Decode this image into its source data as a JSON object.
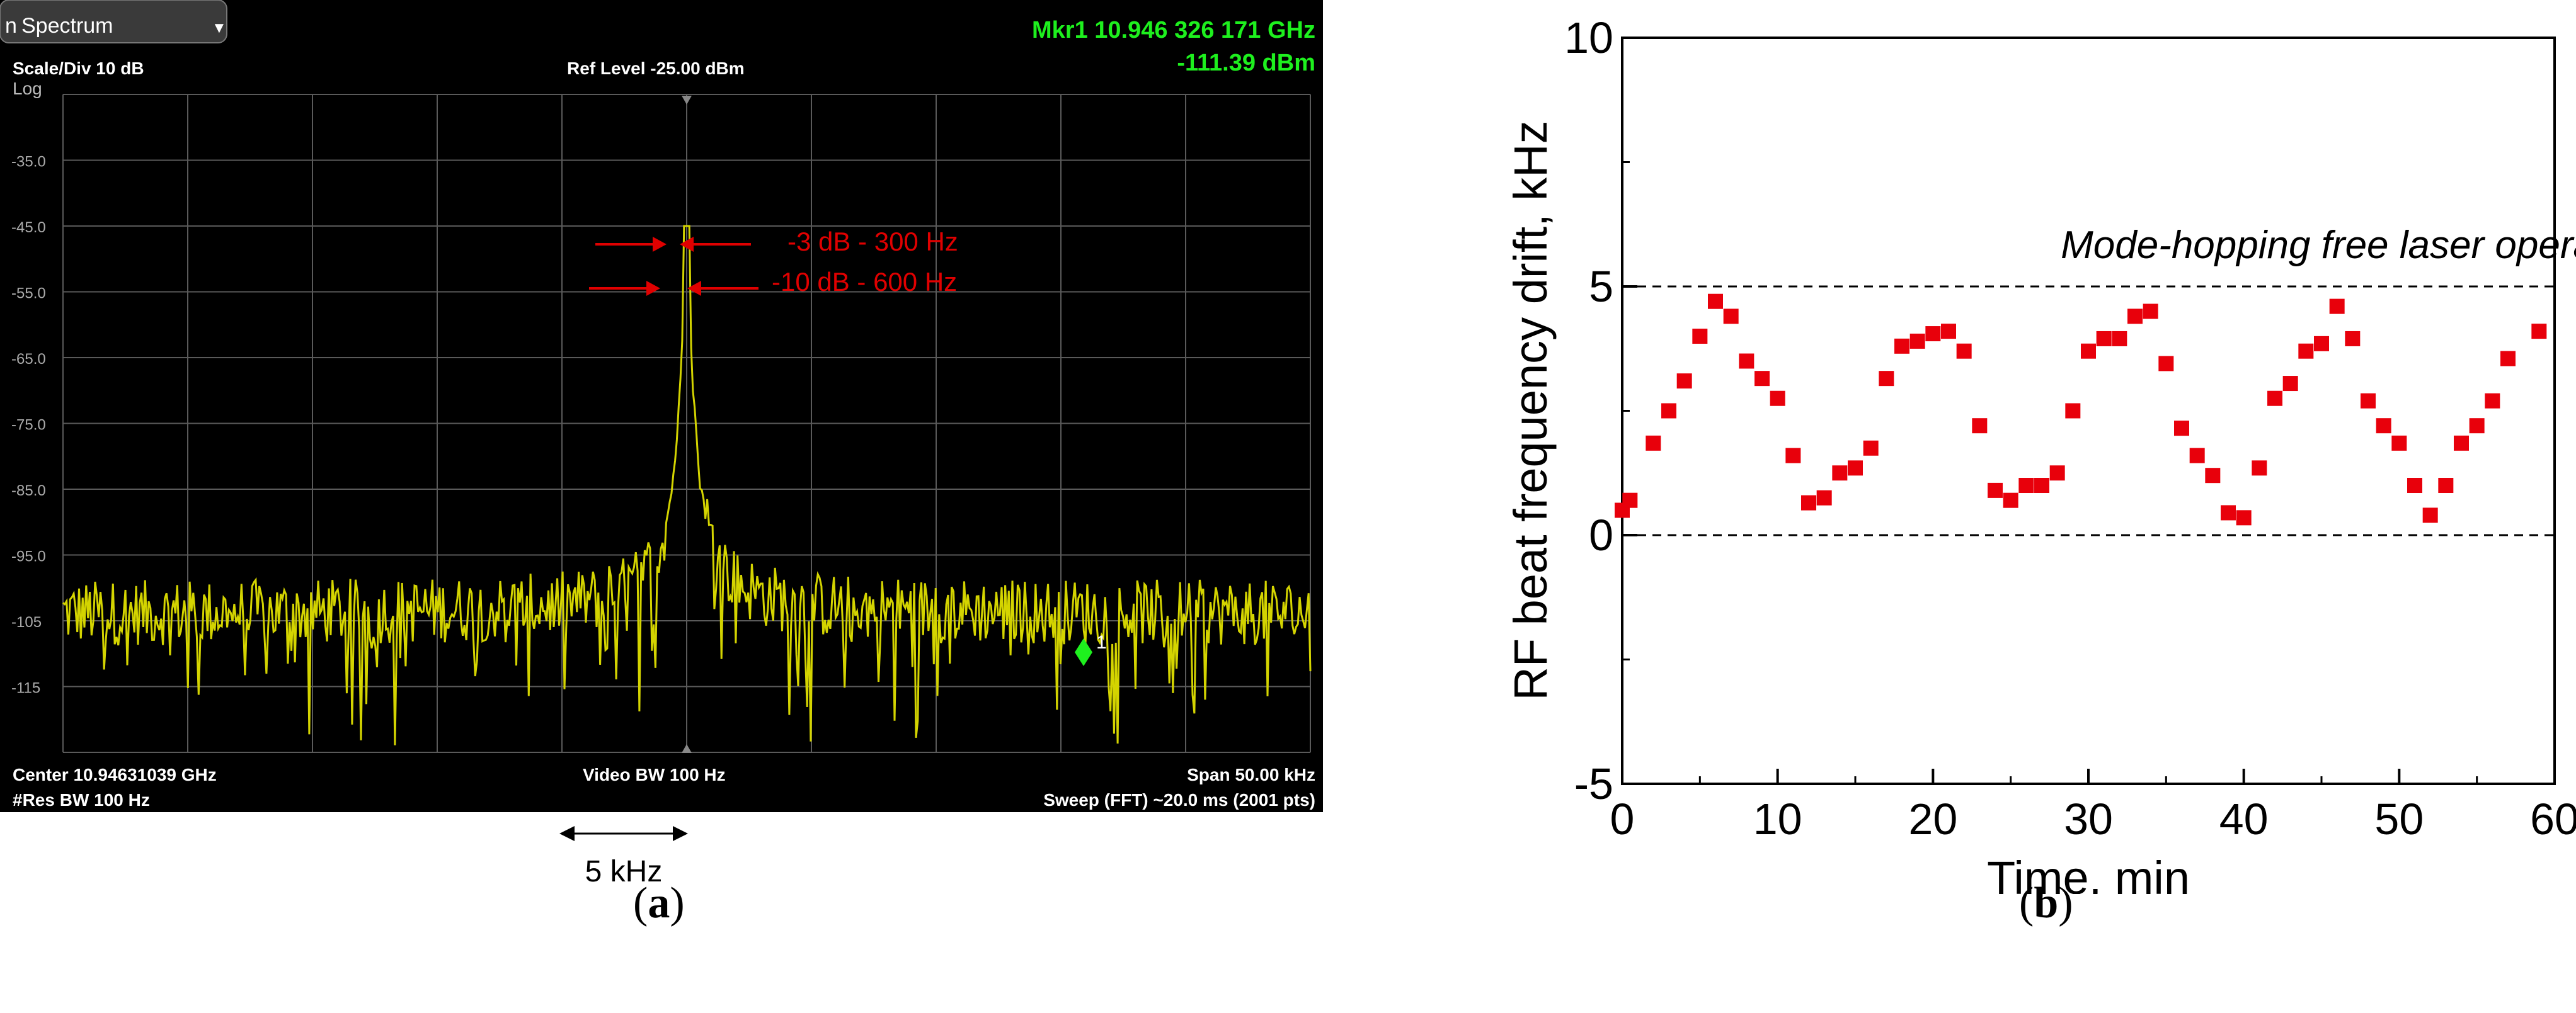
{
  "captions": {
    "a_open": "(",
    "a_letter": "a",
    "a_close": ")",
    "b_open": "(",
    "b_letter": "b",
    "b_close": ")"
  },
  "spectrum": {
    "tab_label": "Spectrum",
    "tab_glyph": "n",
    "scale_div": "Scale/Div 10 dB",
    "scale_mode": "Log",
    "ref_level": "Ref Level -25.00 dBm",
    "marker_line1": "Mkr1  10.946 326 171 GHz",
    "marker_line2": "-111.39 dBm",
    "center": "Center 10.94631039 GHz",
    "res_bw": "#Res BW 100 Hz",
    "video_bw": "Video BW 100 Hz",
    "span": "Span 50.00 kHz",
    "sweep": "Sweep (FFT) ~20.0 ms  (2001 pts)",
    "y_ticks": [
      "-35.0",
      "-45.0",
      "-55.0",
      "-65.0",
      "-75.0",
      "-85.0",
      "-95.0",
      "-105",
      "-115"
    ],
    "annot_3db": "-3 dB - 300 Hz",
    "annot_10db": "-10 dB - 600 Hz",
    "marker_label": "1",
    "scale_bar_label": "5 kHz",
    "colors": {
      "background": "#000000",
      "trace": "#d4d400",
      "grid": "#5a5a5a",
      "annotation": "#e00000",
      "marker": "#00ff00"
    }
  },
  "chart_data": [
    {
      "type": "line",
      "series": [],
      "xlabel": "",
      "ylabel": "",
      "ylim": [
        -125,
        -25
      ],
      "note_unit": "dBm"
    },
    {
      "type": "scatter",
      "title": "",
      "xlabel": "Time, min",
      "ylabel": "RF beat frequency drift, kHz",
      "xlim": [
        0,
        60
      ],
      "ylim": [
        -5,
        10
      ],
      "x_ticks": [
        0,
        10,
        20,
        30,
        40,
        50,
        60
      ],
      "y_ticks": [
        -5,
        0,
        5,
        10
      ],
      "reference_lines": [
        0,
        5
      ],
      "annotation": "Mode-hopping free laser operation",
      "series": [
        {
          "color": "#e8000b",
          "x": [
            0,
            0.5,
            2,
            3,
            4,
            5,
            6,
            7,
            8,
            9,
            10,
            11,
            12,
            13,
            14,
            15,
            16,
            17,
            18,
            19,
            20,
            21,
            22,
            23,
            24,
            25,
            26,
            27,
            28,
            29,
            30,
            31,
            32,
            33,
            34,
            35,
            36,
            37,
            38,
            39,
            40,
            41,
            42,
            43,
            44,
            45,
            46,
            47,
            48,
            49,
            50,
            51,
            52,
            53,
            54,
            55,
            56,
            57,
            59
          ],
          "y": [
            0.5,
            0.7,
            1.85,
            2.5,
            3.1,
            4.0,
            4.7,
            4.4,
            3.5,
            3.15,
            2.75,
            1.6,
            0.65,
            0.75,
            1.25,
            1.35,
            1.75,
            3.15,
            3.8,
            3.9,
            4.05,
            4.1,
            3.7,
            2.2,
            0.9,
            0.7,
            1.0,
            1.0,
            1.25,
            2.5,
            3.7,
            3.95,
            3.95,
            4.4,
            4.5,
            3.45,
            2.15,
            1.6,
            1.2,
            0.45,
            0.35,
            1.35,
            2.75,
            3.05,
            3.7,
            3.85,
            4.6,
            3.95,
            2.7,
            2.2,
            1.85,
            1.0,
            0.4,
            1.0,
            1.85,
            2.2,
            2.7,
            3.55,
            4.1
          ]
        }
      ]
    }
  ]
}
